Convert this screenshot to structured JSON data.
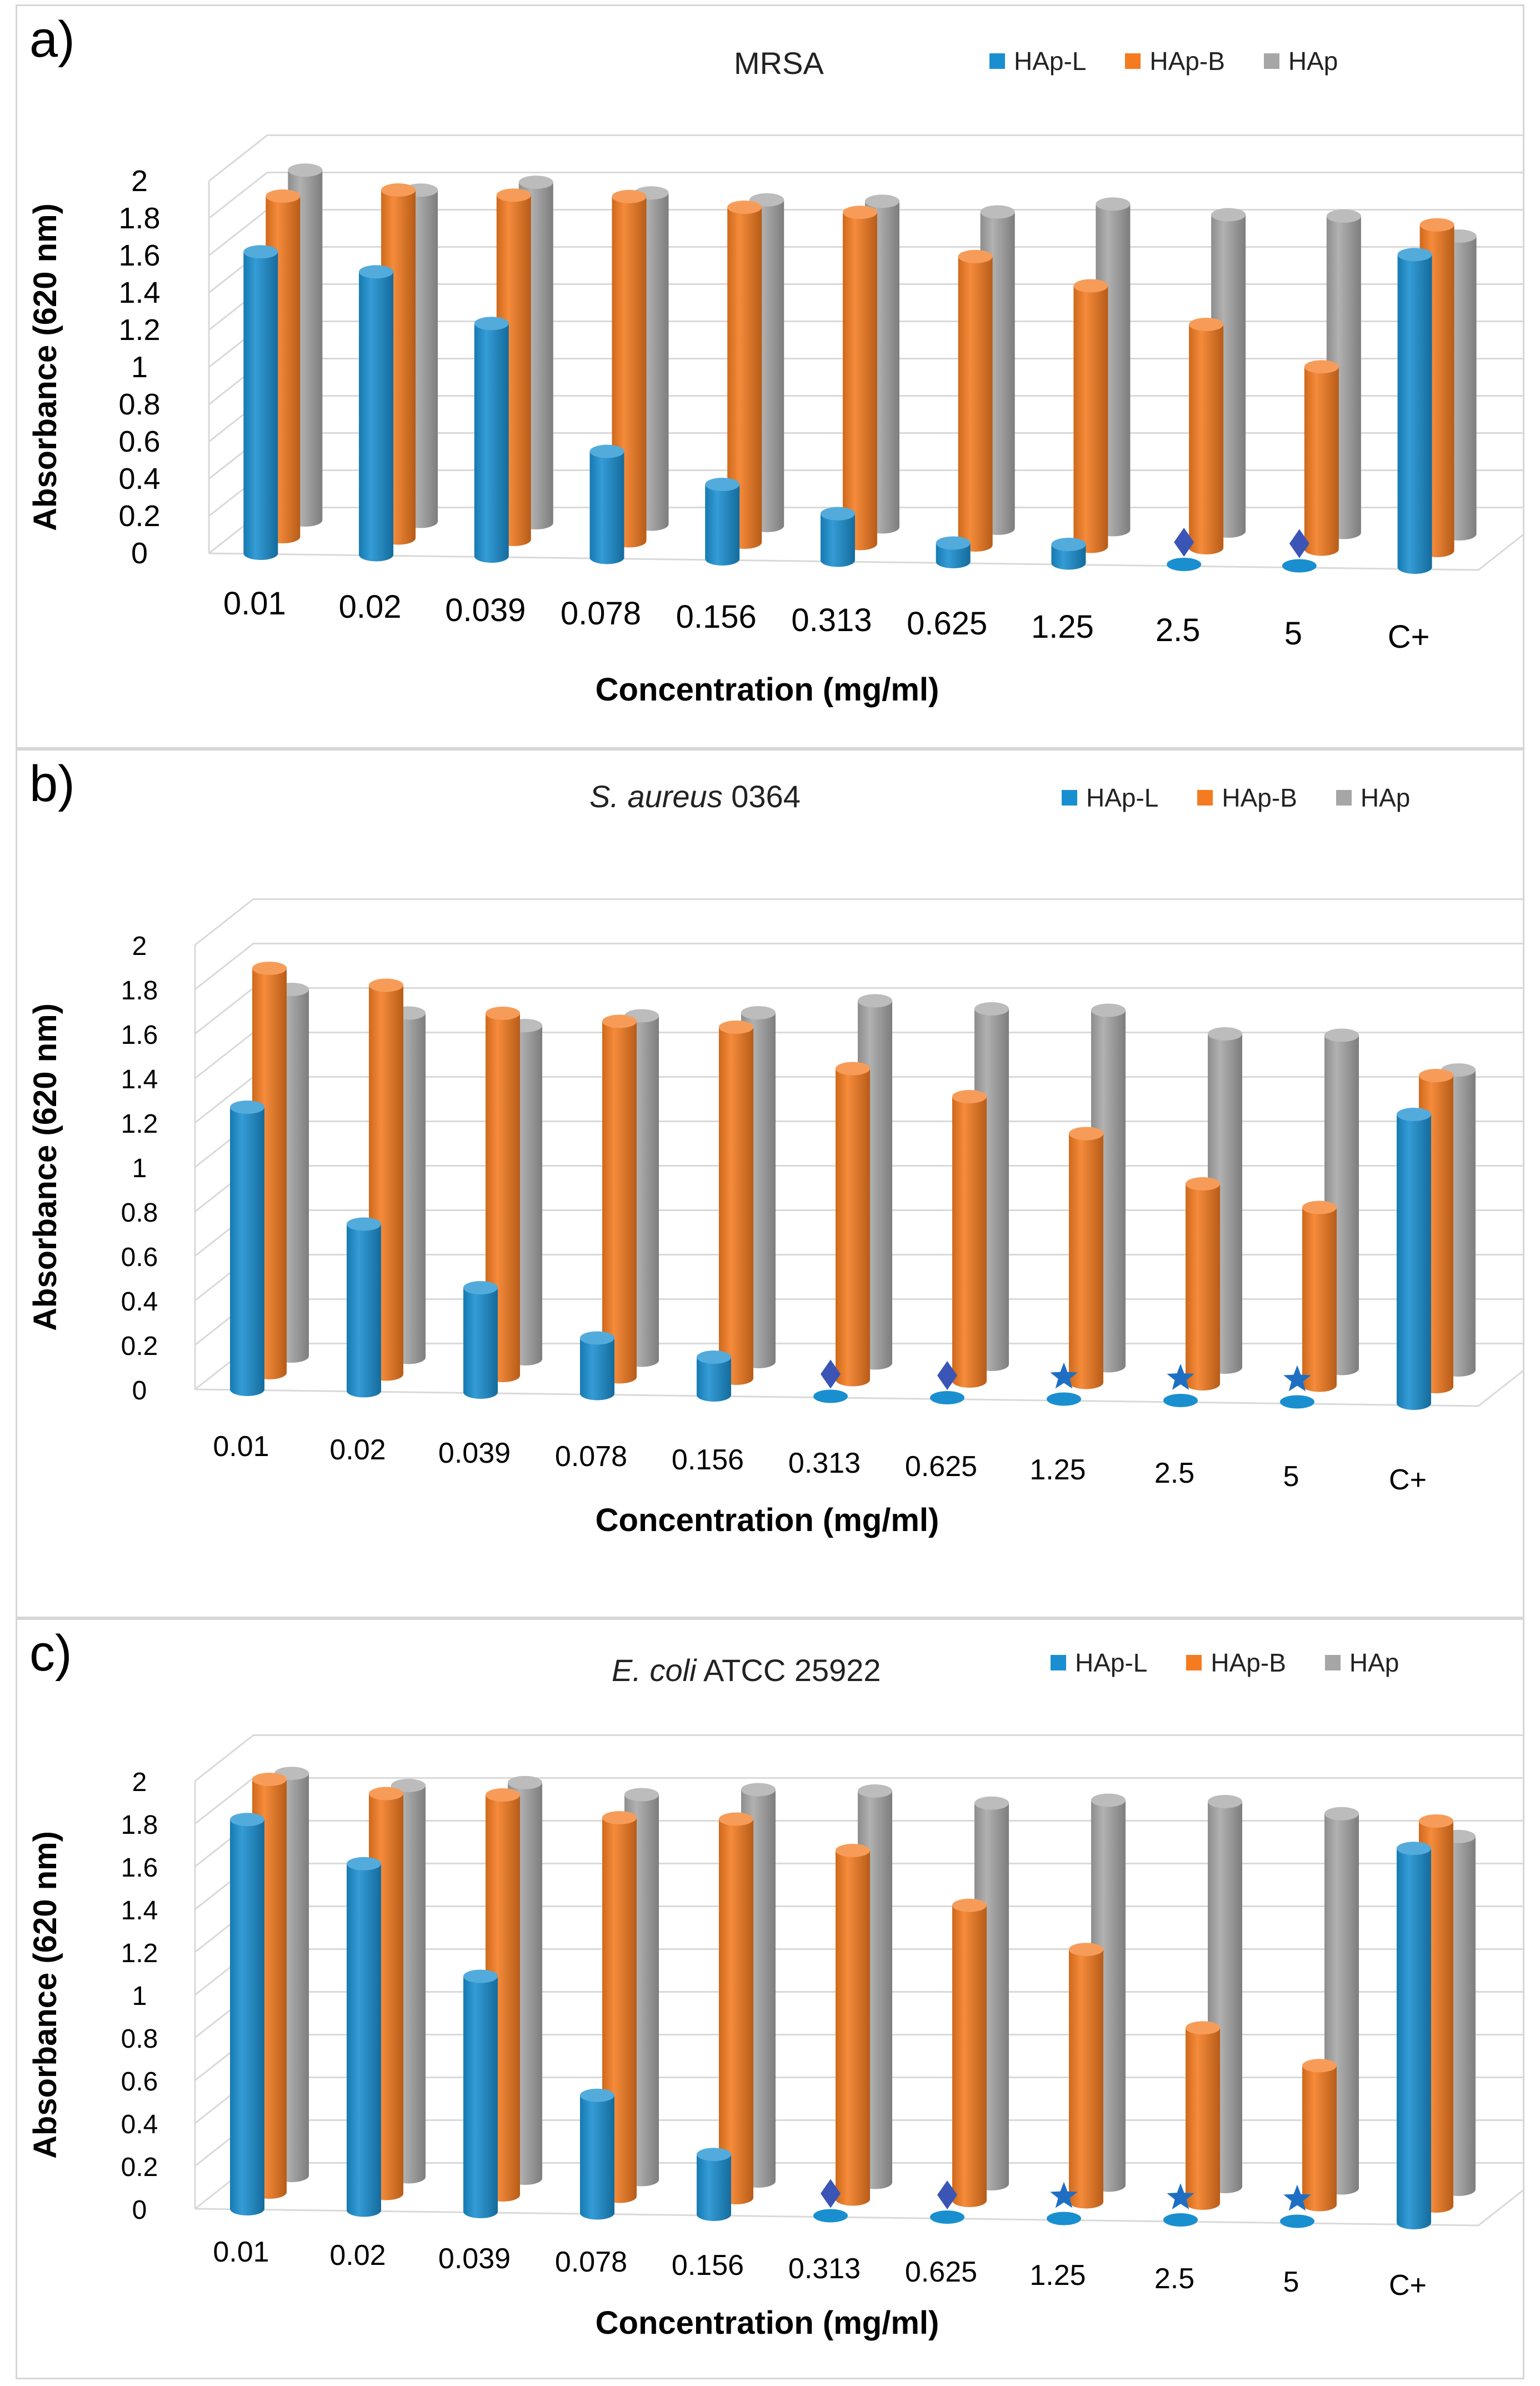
{
  "legend": {
    "series_colors": {
      "HAp-L": "#1a8fd0",
      "HAp-B": "#f47b20",
      "HAp": "#a6a6a6"
    }
  },
  "chart_data": [
    {
      "panel_label": "a)",
      "type": "bar",
      "title": "MRSA",
      "title_italic": "",
      "title_rest": "MRSA",
      "xlabel": "Concentration (mg/ml)",
      "ylabel": "Absorbance (620 nm)",
      "ylim": [
        0,
        2
      ],
      "yticks": [
        "0",
        "0.2",
        "0.4",
        "0.6",
        "0.8",
        "1",
        "1.2",
        "1.4",
        "1.6",
        "1.8",
        "2"
      ],
      "categories": [
        "0.01",
        "0.02",
        "0.039",
        "0.078",
        "0.156",
        "0.313",
        "0.625",
        "1.25",
        "2.5",
        "5",
        "C+"
      ],
      "series": [
        {
          "name": "HAp-L",
          "values": [
            1.62,
            1.52,
            1.25,
            0.57,
            0.4,
            0.25,
            0.1,
            0.1,
            0.0,
            0.0,
            1.68
          ]
        },
        {
          "name": "HAp-B",
          "values": [
            1.83,
            1.87,
            1.85,
            1.85,
            1.8,
            1.78,
            1.55,
            1.4,
            1.2,
            0.98,
            1.75
          ]
        },
        {
          "name": "HAp",
          "values": [
            1.88,
            1.78,
            1.83,
            1.78,
            1.75,
            1.75,
            1.7,
            1.75,
            1.7,
            1.7,
            1.6
          ]
        }
      ],
      "markers": [
        null,
        null,
        null,
        null,
        null,
        null,
        null,
        null,
        "diamond",
        "diamond",
        null
      ]
    },
    {
      "panel_label": "b)",
      "type": "bar",
      "title": "S. aureus 0364",
      "title_italic": "S. aureus",
      "title_rest": " 0364",
      "xlabel": "Concentration (mg/ml)",
      "ylabel": "Absorbance (620 nm)",
      "ylim": [
        0,
        2
      ],
      "yticks": [
        "0",
        "0.2",
        "0.4",
        "0.6",
        "0.8",
        "1",
        "1.2",
        "1.4",
        "1.6",
        "1.8",
        "2"
      ],
      "categories": [
        "0.01",
        "0.02",
        "0.039",
        "0.078",
        "0.156",
        "0.313",
        "0.625",
        "1.25",
        "2.5",
        "5",
        "C+"
      ],
      "series": [
        {
          "name": "HAp-L",
          "values": [
            1.27,
            0.75,
            0.47,
            0.25,
            0.17,
            0.0,
            0.0,
            0.0,
            0.0,
            0.0,
            1.3
          ]
        },
        {
          "name": "HAp-B",
          "values": [
            1.82,
            1.75,
            1.63,
            1.6,
            1.58,
            1.4,
            1.28,
            1.12,
            0.9,
            0.8,
            1.4
          ]
        },
        {
          "name": "HAp",
          "values": [
            1.65,
            1.55,
            1.5,
            1.55,
            1.57,
            1.63,
            1.6,
            1.6,
            1.5,
            1.5,
            1.35
          ]
        }
      ],
      "markers": [
        null,
        null,
        null,
        null,
        null,
        "diamond",
        "diamond",
        "star",
        "star",
        "star",
        null
      ]
    },
    {
      "panel_label": "c)",
      "type": "bar",
      "title": "E. coli ATCC 25922",
      "title_italic": "E. coli",
      "title_rest": " ATCC 25922",
      "xlabel": "Concentration (mg/ml)",
      "ylabel": "Absorbance (620 nm)",
      "ylim": [
        0,
        2
      ],
      "yticks": [
        "0",
        "0.2",
        "0.4",
        "0.6",
        "0.8",
        "1",
        "1.2",
        "1.4",
        "1.6",
        "1.8",
        "2"
      ],
      "categories": [
        "0.01",
        "0.02",
        "0.039",
        "0.078",
        "0.156",
        "0.313",
        "0.625",
        "1.25",
        "2.5",
        "5",
        "C+"
      ],
      "series": [
        {
          "name": "HAp-L",
          "values": [
            1.82,
            1.62,
            1.1,
            0.55,
            0.28,
            0.0,
            0.0,
            0.0,
            0.0,
            0.0,
            1.75
          ]
        },
        {
          "name": "HAp-B",
          "values": [
            1.93,
            1.87,
            1.87,
            1.77,
            1.77,
            1.63,
            1.38,
            1.18,
            0.82,
            0.65,
            1.8
          ]
        },
        {
          "name": "HAp",
          "values": [
            1.88,
            1.83,
            1.85,
            1.8,
            1.83,
            1.83,
            1.78,
            1.8,
            1.8,
            1.75,
            1.65
          ]
        }
      ],
      "markers": [
        null,
        null,
        null,
        null,
        null,
        "diamond",
        "diamond",
        "star",
        "star",
        "star",
        null
      ]
    }
  ]
}
